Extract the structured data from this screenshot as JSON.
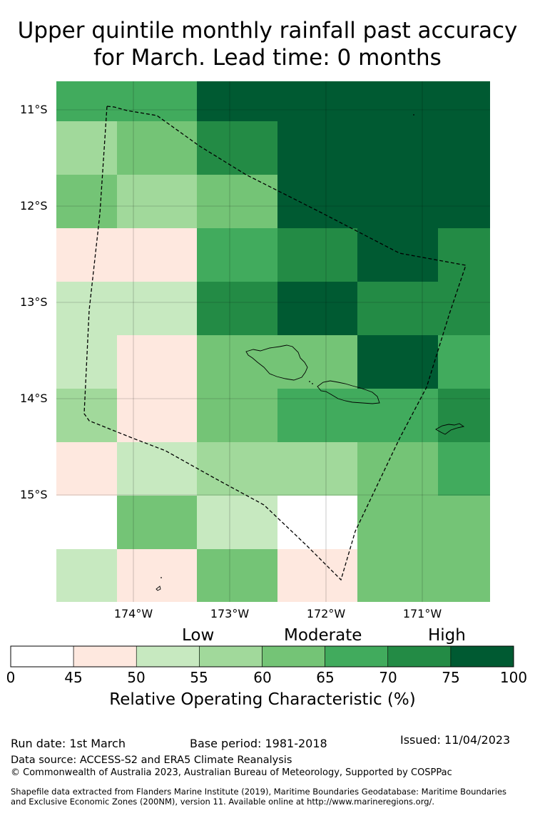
{
  "title": {
    "line1": "Upper quintile monthly rainfall past accuracy",
    "line2": "for March. Lead time: 0 months"
  },
  "map": {
    "latitude_labels": [
      "11°S",
      "12°S",
      "13°S",
      "14°S",
      "15°S"
    ],
    "longitude_labels": [
      "174°W",
      "173°W",
      "172°W",
      "171°W"
    ],
    "grid_rows": [
      [
        5,
        5,
        7,
        7,
        7,
        7
      ],
      [
        3,
        4,
        6,
        7,
        7,
        7
      ],
      [
        4,
        3,
        4,
        7,
        7,
        7
      ],
      [
        1,
        1,
        5,
        6,
        7,
        6
      ],
      [
        2,
        2,
        6,
        7,
        6,
        6
      ],
      [
        2,
        1,
        4,
        4,
        7,
        5
      ],
      [
        3,
        1,
        4,
        5,
        5,
        6
      ],
      [
        1,
        2,
        3,
        3,
        4,
        5
      ],
      [
        0,
        4,
        2,
        0,
        4,
        4
      ],
      [
        2,
        1,
        4,
        1,
        4,
        4
      ]
    ]
  },
  "colorbar": {
    "categories": [
      "Low",
      "Moderate",
      "High"
    ],
    "ticks": [
      "0",
      "45",
      "50",
      "55",
      "60",
      "65",
      "70",
      "75",
      "100"
    ],
    "colors": [
      "#ffffff",
      "#fee8df",
      "#c7e9c0",
      "#a1d99b",
      "#74c476",
      "#41ab5d",
      "#238b45",
      "#005a32"
    ],
    "label": "Relative Operating Characteristic (%)"
  },
  "footer": {
    "run_date": "Run date: 1st March",
    "base_period": "Base period: 1981-2018",
    "issued": "Issued: 11/04/2023",
    "data_source": "Data source: ACCESS-S2 and ERA5 Climate Reanalysis",
    "copyright": "© Commonwealth of Australia 2023, Australian Bureau of Meteorology, Supported by COSPPac",
    "shapefile_line1": "Shapefile data extracted from Flanders Marine Institute (2019), Maritime Boundaries Geodatabase: Maritime Boundaries",
    "shapefile_line2": "and Exclusive Economic Zones (200NM), version 11. Available online at http://www.marineregions.org/."
  }
}
